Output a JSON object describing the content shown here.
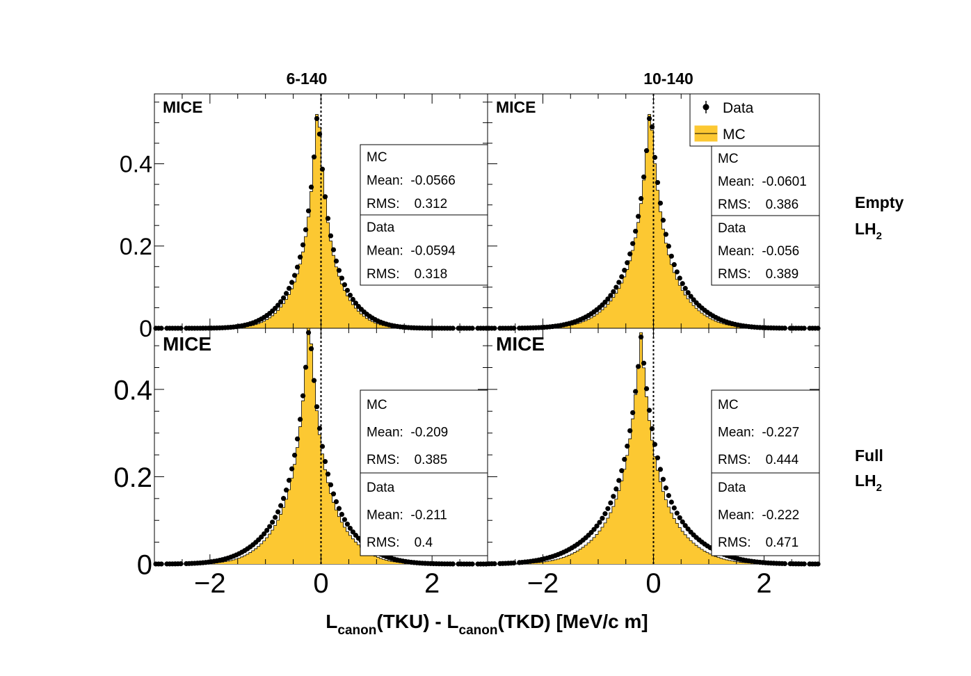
{
  "figure": {
    "xlabel_main": "L",
    "xlabel_sub": "canon",
    "xlabel_mid": "(TKU) - L",
    "xlabel_end": "(TKD) [MeV/c m]",
    "colors": {
      "mc_fill": "#fcc832",
      "data_marker": "#000000",
      "axis": "#000000"
    }
  },
  "columns": [
    {
      "title": "6-140"
    },
    {
      "title": "10-140"
    }
  ],
  "rows": [
    {
      "label": "Empty",
      "sublabel": "LH",
      "subscript": "2"
    },
    {
      "label": "Full",
      "sublabel": "LH",
      "subscript": "2"
    }
  ],
  "legend": {
    "data_label": "Data",
    "mc_label": "MC"
  },
  "chart_data": [
    {
      "type": "bar",
      "id": "empty-6-140",
      "watermark": "MICE",
      "xlim": [
        -3,
        3
      ],
      "ylim": [
        0,
        0.57
      ],
      "yticks": [
        {
          "v": 0,
          "label": "0"
        },
        {
          "v": 0.2,
          "label": "0.2"
        },
        {
          "v": 0.4,
          "label": "0.4"
        }
      ],
      "mc": {
        "mean": -0.0566,
        "rms": 0.312,
        "peak": 0.52
      },
      "data": {
        "mean": -0.0594,
        "rms": 0.318,
        "peak": 0.51
      },
      "stats": {
        "mc_title": "MC",
        "mc_mean": "Mean:  -0.0566",
        "mc_rms": "RMS:    0.312",
        "data_title": "Data",
        "data_mean": "Mean:  -0.0594",
        "data_rms": "RMS:    0.318"
      }
    },
    {
      "type": "bar",
      "id": "empty-10-140",
      "watermark": "MICE",
      "xlim": [
        -3,
        3
      ],
      "ylim": [
        0,
        0.57
      ],
      "yticks": [
        {
          "v": 0,
          "label": "0"
        },
        {
          "v": 0.2,
          "label": "0.2"
        },
        {
          "v": 0.4,
          "label": "0.4"
        }
      ],
      "mc": {
        "mean": -0.0601,
        "rms": 0.386,
        "peak": 0.52
      },
      "data": {
        "mean": -0.056,
        "rms": 0.389,
        "peak": 0.51
      },
      "stats": {
        "mc_title": "MC",
        "mc_mean": "Mean:  -0.0601",
        "mc_rms": "RMS:    0.386",
        "data_title": "Data",
        "data_mean": "Mean:  -0.056",
        "data_rms": "RMS:    0.389"
      }
    },
    {
      "type": "bar",
      "id": "full-6-140",
      "watermark": "MICE",
      "xlim": [
        -3,
        3
      ],
      "ylim": [
        0,
        0.54
      ],
      "yticks": [
        {
          "v": 0,
          "label": "0"
        },
        {
          "v": 0.2,
          "label": "0.2"
        },
        {
          "v": 0.4,
          "label": "0.4"
        }
      ],
      "mc": {
        "mean": -0.209,
        "rms": 0.385,
        "peak": 0.54
      },
      "data": {
        "mean": -0.211,
        "rms": 0.4,
        "peak": 0.53
      },
      "stats": {
        "mc_title": "MC",
        "mc_mean": "Mean:  -0.209",
        "mc_rms": "RMS:    0.385",
        "data_title": "Data",
        "data_mean": "Mean:  -0.211",
        "data_rms": "RMS:    0.4"
      }
    },
    {
      "type": "bar",
      "id": "full-10-140",
      "watermark": "MICE",
      "xlim": [
        -3,
        3
      ],
      "ylim": [
        0,
        0.54
      ],
      "yticks": [
        {
          "v": 0,
          "label": "0"
        },
        {
          "v": 0.2,
          "label": "0.2"
        },
        {
          "v": 0.4,
          "label": "0.4"
        }
      ],
      "xticks": [
        {
          "v": -2,
          "label": "−2"
        },
        {
          "v": 0,
          "label": "0"
        },
        {
          "v": 2,
          "label": "2"
        }
      ],
      "mc": {
        "mean": -0.227,
        "rms": 0.444,
        "peak": 0.53
      },
      "data": {
        "mean": -0.222,
        "rms": 0.471,
        "peak": 0.52
      },
      "stats": {
        "mc_title": "MC",
        "mc_mean": "Mean:  -0.227",
        "mc_rms": "RMS:    0.444",
        "data_title": "Data",
        "data_mean": "Mean:  -0.222",
        "data_rms": "RMS:    0.471"
      }
    }
  ]
}
